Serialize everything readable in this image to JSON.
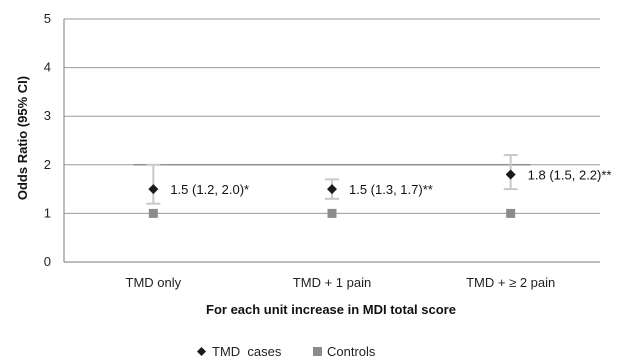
{
  "chart_data": {
    "type": "scatter",
    "xlabel": "For each unit increase in MDI total score",
    "ylabel": "Odds Ratio (95% CI)",
    "ylim": [
      0,
      5
    ],
    "yticks": [
      "0",
      "1",
      "2",
      "3",
      "4",
      "5"
    ],
    "grid": true,
    "categories": [
      "TMD only",
      "TMD + 1 pain",
      "TMD + ≥ 2 pain"
    ],
    "series": [
      {
        "name": "TMD  cases",
        "marker": "diamond",
        "color": "#1a1a1a",
        "values": [
          1.5,
          1.5,
          1.8
        ],
        "ci_low": [
          1.2,
          1.3,
          1.5
        ],
        "ci_high": [
          2.0,
          1.7,
          2.2
        ],
        "labels": [
          "1.5 (1.2, 2.0)*",
          "1.5 (1.3, 1.7)**",
          "1.8 (1.5, 2.2)**"
        ]
      },
      {
        "name": "Controls",
        "marker": "square",
        "color": "#8c8c8c",
        "values": [
          1,
          1,
          1
        ]
      }
    ],
    "legend_position": "bottom-center",
    "errorbar_color": "#c8c8c8",
    "reference_line": 2,
    "reference_line_color": "#909090"
  }
}
